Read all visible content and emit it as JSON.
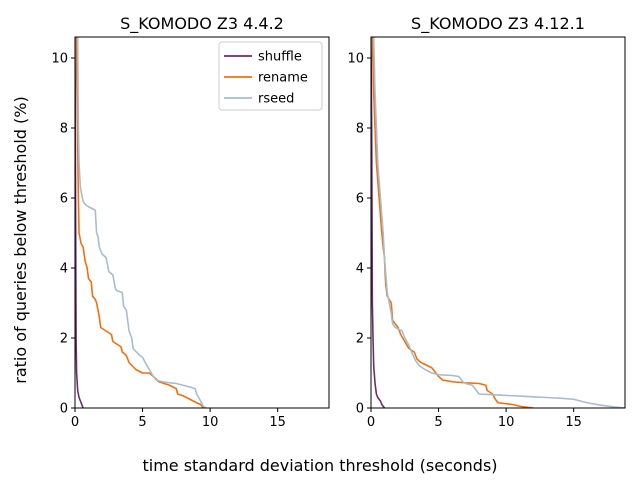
{
  "chart_data": {
    "type": "line",
    "xlabel": "time standard deviation threshold (seconds)",
    "ylabel": "ratio of queries below threshold (%)",
    "legend": {
      "position": "top-right",
      "entries": [
        "shuffle",
        "rename",
        "rseed"
      ]
    },
    "colors": {
      "shuffle": "#6b2d6b",
      "rename": "#f07010",
      "rseed": "#a8bcd0"
    },
    "grid": false,
    "panels": [
      {
        "title": "S_KOMODO Z3 4.4.2",
        "xlim": [
          0,
          18.8
        ],
        "ylim": [
          0,
          10.6
        ],
        "xticks": [
          0,
          5,
          10,
          15
        ],
        "yticks": [
          0,
          2,
          4,
          6,
          8,
          10
        ],
        "series": [
          {
            "name": "shuffle",
            "points": [
              [
                0.0,
                10.6
              ],
              [
                0.02,
                8.0
              ],
              [
                0.05,
                5.0
              ],
              [
                0.08,
                2.0
              ],
              [
                0.12,
                1.0
              ],
              [
                0.2,
                0.5
              ],
              [
                0.3,
                0.3
              ],
              [
                0.5,
                0.1
              ],
              [
                0.6,
                0.0
              ]
            ]
          },
          {
            "name": "rename",
            "points": [
              [
                0.1,
                10.6
              ],
              [
                0.15,
                9.0
              ],
              [
                0.2,
                7.5
              ],
              [
                0.25,
                6.0
              ],
              [
                0.3,
                5.0
              ],
              [
                0.45,
                4.7
              ],
              [
                0.6,
                4.6
              ],
              [
                0.75,
                4.2
              ],
              [
                0.9,
                4.0
              ],
              [
                1.0,
                3.7
              ],
              [
                1.2,
                3.6
              ],
              [
                1.3,
                3.2
              ],
              [
                1.5,
                3.1
              ],
              [
                1.6,
                3.0
              ],
              [
                1.8,
                2.6
              ],
              [
                1.9,
                2.3
              ],
              [
                2.3,
                2.2
              ],
              [
                2.7,
                2.1
              ],
              [
                2.8,
                1.9
              ],
              [
                3.0,
                1.85
              ],
              [
                3.4,
                1.75
              ],
              [
                3.5,
                1.6
              ],
              [
                3.8,
                1.5
              ],
              [
                4.0,
                1.3
              ],
              [
                4.5,
                1.1
              ],
              [
                5.0,
                1.0
              ],
              [
                5.5,
                1.0
              ],
              [
                5.8,
                0.9
              ],
              [
                6.2,
                0.75
              ],
              [
                7.0,
                0.65
              ],
              [
                7.5,
                0.55
              ],
              [
                7.6,
                0.4
              ],
              [
                8.0,
                0.35
              ],
              [
                8.5,
                0.25
              ],
              [
                9.0,
                0.15
              ],
              [
                9.3,
                0.1
              ],
              [
                9.5,
                0.0
              ]
            ]
          },
          {
            "name": "rseed",
            "points": [
              [
                0.2,
                10.6
              ],
              [
                0.25,
                8.0
              ],
              [
                0.3,
                7.0
              ],
              [
                0.4,
                6.3
              ],
              [
                0.6,
                5.9
              ],
              [
                0.8,
                5.8
              ],
              [
                1.0,
                5.75
              ],
              [
                1.5,
                5.65
              ],
              [
                1.6,
                5.0
              ],
              [
                1.7,
                4.9
              ],
              [
                1.8,
                4.6
              ],
              [
                2.0,
                4.4
              ],
              [
                2.3,
                4.3
              ],
              [
                2.5,
                3.9
              ],
              [
                2.8,
                3.8
              ],
              [
                3.0,
                3.4
              ],
              [
                3.1,
                3.35
              ],
              [
                3.5,
                3.3
              ],
              [
                3.6,
                2.9
              ],
              [
                3.8,
                2.8
              ],
              [
                4.0,
                2.2
              ],
              [
                4.2,
                2.0
              ],
              [
                4.3,
                1.7
              ],
              [
                4.8,
                1.5
              ],
              [
                5.0,
                1.45
              ],
              [
                5.2,
                1.3
              ],
              [
                5.5,
                1.1
              ],
              [
                5.8,
                0.9
              ],
              [
                6.0,
                0.8
              ],
              [
                6.5,
                0.75
              ],
              [
                7.0,
                0.72
              ],
              [
                7.5,
                0.7
              ],
              [
                8.0,
                0.65
              ],
              [
                8.5,
                0.6
              ],
              [
                8.9,
                0.55
              ],
              [
                9.0,
                0.4
              ],
              [
                9.3,
                0.2
              ],
              [
                9.5,
                0.05
              ],
              [
                9.7,
                0.0
              ]
            ]
          }
        ]
      },
      {
        "title": "S_KOMODO Z3 4.12.1",
        "xlim": [
          0,
          18.8
        ],
        "ylim": [
          0,
          10.6
        ],
        "xticks": [
          0,
          5,
          10,
          15
        ],
        "yticks": [
          0,
          2,
          4,
          6,
          8,
          10
        ],
        "series": [
          {
            "name": "shuffle",
            "points": [
              [
                0.0,
                10.6
              ],
              [
                0.05,
                8.0
              ],
              [
                0.08,
                5.0
              ],
              [
                0.1,
                3.0
              ],
              [
                0.15,
                2.0
              ],
              [
                0.2,
                1.2
              ],
              [
                0.3,
                0.7
              ],
              [
                0.4,
                0.4
              ],
              [
                0.5,
                0.3
              ],
              [
                0.7,
                0.2
              ],
              [
                0.8,
                0.1
              ],
              [
                1.0,
                0.0
              ]
            ]
          },
          {
            "name": "rename",
            "points": [
              [
                0.1,
                10.6
              ],
              [
                0.2,
                9.0
              ],
              [
                0.3,
                8.0
              ],
              [
                0.4,
                7.0
              ],
              [
                0.5,
                6.5
              ],
              [
                0.6,
                6.0
              ],
              [
                0.7,
                5.5
              ],
              [
                0.8,
                5.0
              ],
              [
                0.9,
                4.6
              ],
              [
                1.0,
                4.3
              ],
              [
                1.05,
                3.8
              ],
              [
                1.1,
                3.5
              ],
              [
                1.2,
                3.2
              ],
              [
                1.5,
                3.0
              ],
              [
                1.6,
                2.5
              ],
              [
                2.0,
                2.3
              ],
              [
                2.2,
                2.1
              ],
              [
                2.5,
                1.9
              ],
              [
                2.8,
                1.7
              ],
              [
                3.2,
                1.6
              ],
              [
                3.4,
                1.4
              ],
              [
                3.7,
                1.3
              ],
              [
                4.5,
                1.15
              ],
              [
                5.0,
                0.9
              ],
              [
                5.3,
                0.8
              ],
              [
                6.0,
                0.75
              ],
              [
                7.0,
                0.72
              ],
              [
                8.0,
                0.7
              ],
              [
                8.5,
                0.65
              ],
              [
                8.6,
                0.5
              ],
              [
                9.0,
                0.4
              ],
              [
                9.2,
                0.25
              ],
              [
                9.4,
                0.15
              ],
              [
                10.5,
                0.1
              ],
              [
                11.0,
                0.05
              ],
              [
                12.0,
                0.0
              ]
            ]
          },
          {
            "name": "rseed",
            "points": [
              [
                0.2,
                10.6
              ],
              [
                0.3,
                9.0
              ],
              [
                0.4,
                8.0
              ],
              [
                0.5,
                7.0
              ],
              [
                0.6,
                6.5
              ],
              [
                0.7,
                6.0
              ],
              [
                0.8,
                5.5
              ],
              [
                0.9,
                5.0
              ],
              [
                1.0,
                4.3
              ],
              [
                1.1,
                3.8
              ],
              [
                1.2,
                3.3
              ],
              [
                1.5,
                2.7
              ],
              [
                1.6,
                2.4
              ],
              [
                1.8,
                2.3
              ],
              [
                2.3,
                2.2
              ],
              [
                2.5,
                2.0
              ],
              [
                2.8,
                1.8
              ],
              [
                3.0,
                1.6
              ],
              [
                3.3,
                1.35
              ],
              [
                3.6,
                1.2
              ],
              [
                4.0,
                1.1
              ],
              [
                4.5,
                1.0
              ],
              [
                5.0,
                0.95
              ],
              [
                6.0,
                0.93
              ],
              [
                6.5,
                0.9
              ],
              [
                6.8,
                0.75
              ],
              [
                7.0,
                0.7
              ],
              [
                7.5,
                0.65
              ],
              [
                7.8,
                0.5
              ],
              [
                8.0,
                0.4
              ],
              [
                9.0,
                0.38
              ],
              [
                10.0,
                0.36
              ],
              [
                11.0,
                0.34
              ],
              [
                12.0,
                0.32
              ],
              [
                13.0,
                0.3
              ],
              [
                14.0,
                0.28
              ],
              [
                15.0,
                0.25
              ],
              [
                15.5,
                0.2
              ],
              [
                16.0,
                0.15
              ],
              [
                17.0,
                0.08
              ],
              [
                18.0,
                0.03
              ],
              [
                18.8,
                0.0
              ]
            ]
          }
        ]
      }
    ]
  }
}
